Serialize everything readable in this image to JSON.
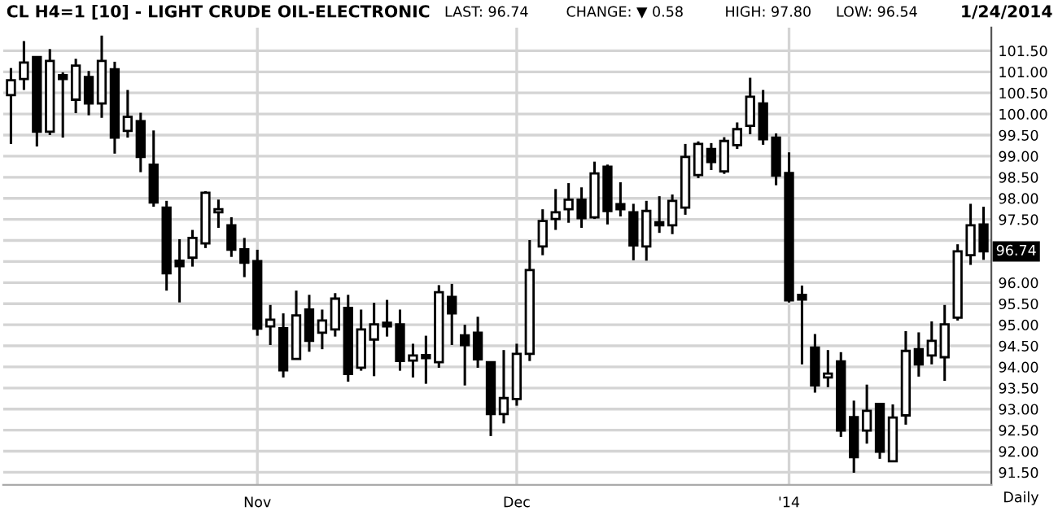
{
  "chart_data": {
    "type": "candlestick",
    "title": "CL H4=1 [10] - LIGHT CRUDE OIL-ELECTRONIC",
    "annotations": [
      "LAST: 96.74",
      "CHANGE: ▼ 0.58",
      "HIGH: 97.80",
      "LOW: 96.54",
      "1/24/2014",
      {
        "text": "96.74",
        "y": 96.74
      },
      "Daily"
    ],
    "categories": [
      null,
      null,
      null,
      null,
      null,
      null,
      null,
      null,
      null,
      null,
      null,
      null,
      null,
      null,
      null,
      null,
      null,
      null,
      null,
      "Nov",
      null,
      null,
      null,
      null,
      null,
      null,
      null,
      null,
      null,
      null,
      null,
      null,
      null,
      null,
      null,
      null,
      null,
      null,
      null,
      "Dec",
      null,
      null,
      null,
      null,
      null,
      null,
      null,
      null,
      null,
      null,
      null,
      null,
      null,
      null,
      null,
      null,
      null,
      null,
      null,
      null,
      "'14",
      null,
      null,
      null,
      null,
      null,
      null,
      null,
      null,
      null,
      null,
      null,
      null,
      null,
      null,
      null
    ],
    "ohlc": [
      [
        100.45,
        101.09,
        99.29,
        100.8
      ],
      [
        100.83,
        101.73,
        100.57,
        101.22
      ],
      [
        101.35,
        101.35,
        99.23,
        99.58
      ],
      [
        99.58,
        101.54,
        99.5,
        101.26
      ],
      [
        100.92,
        100.99,
        99.44,
        100.83
      ],
      [
        100.34,
        101.31,
        100.02,
        101.15
      ],
      [
        100.88,
        101.02,
        99.97,
        100.25
      ],
      [
        100.25,
        101.86,
        99.91,
        101.26
      ],
      [
        101.06,
        101.24,
        99.06,
        99.44
      ],
      [
        99.6,
        100.57,
        99.44,
        99.93
      ],
      [
        99.83,
        100.03,
        98.62,
        98.98
      ],
      [
        98.8,
        99.61,
        97.8,
        97.9
      ],
      [
        97.78,
        97.94,
        95.81,
        96.22
      ],
      [
        96.52,
        97.03,
        95.53,
        96.39
      ],
      [
        96.59,
        97.25,
        96.38,
        97.06
      ],
      [
        96.93,
        98.17,
        96.82,
        98.13
      ],
      [
        97.67,
        97.97,
        97.3,
        97.74
      ],
      [
        97.36,
        97.55,
        96.61,
        96.78
      ],
      [
        96.79,
        97.06,
        96.13,
        96.47
      ],
      [
        96.51,
        96.78,
        94.74,
        94.91
      ],
      [
        94.96,
        95.47,
        94.52,
        95.12
      ],
      [
        94.92,
        95.27,
        93.75,
        93.92
      ],
      [
        94.19,
        95.81,
        94.19,
        95.22
      ],
      [
        95.36,
        95.71,
        94.36,
        94.62
      ],
      [
        94.81,
        95.36,
        94.42,
        95.1
      ],
      [
        94.89,
        95.75,
        94.72,
        95.62
      ],
      [
        95.4,
        95.71,
        93.65,
        93.83
      ],
      [
        93.98,
        95.36,
        93.91,
        94.89
      ],
      [
        94.65,
        95.52,
        93.78,
        95.01
      ],
      [
        95.05,
        95.59,
        94.72,
        94.96
      ],
      [
        95.01,
        95.36,
        93.91,
        94.14
      ],
      [
        94.15,
        94.55,
        93.75,
        94.27
      ],
      [
        94.28,
        94.74,
        93.6,
        94.21
      ],
      [
        94.11,
        95.94,
        93.98,
        95.77
      ],
      [
        95.66,
        95.97,
        94.52,
        95.27
      ],
      [
        94.75,
        95.0,
        93.56,
        94.52
      ],
      [
        94.81,
        95.19,
        93.98,
        94.18
      ],
      [
        94.11,
        94.11,
        92.36,
        92.88
      ],
      [
        92.88,
        94.4,
        92.66,
        93.26
      ],
      [
        93.24,
        94.55,
        93.08,
        94.31
      ],
      [
        94.31,
        97.01,
        94.14,
        96.3
      ],
      [
        96.86,
        97.74,
        96.65,
        97.46
      ],
      [
        97.51,
        98.22,
        97.25,
        97.67
      ],
      [
        97.74,
        98.36,
        97.42,
        97.97
      ],
      [
        97.97,
        98.26,
        97.3,
        97.53
      ],
      [
        97.55,
        98.87,
        97.51,
        98.59
      ],
      [
        98.75,
        98.8,
        97.38,
        97.7
      ],
      [
        97.86,
        98.38,
        97.57,
        97.74
      ],
      [
        97.67,
        97.87,
        96.53,
        96.88
      ],
      [
        96.86,
        97.94,
        96.52,
        97.7
      ],
      [
        97.43,
        98.05,
        97.18,
        97.36
      ],
      [
        97.36,
        98.09,
        97.15,
        97.94
      ],
      [
        97.78,
        99.29,
        97.61,
        98.98
      ],
      [
        98.55,
        99.35,
        98.48,
        99.29
      ],
      [
        99.17,
        99.31,
        98.67,
        98.86
      ],
      [
        98.64,
        99.45,
        98.58,
        99.36
      ],
      [
        99.26,
        99.8,
        99.17,
        99.64
      ],
      [
        99.72,
        100.86,
        99.52,
        100.41
      ],
      [
        100.25,
        100.57,
        99.27,
        99.4
      ],
      [
        99.44,
        99.54,
        98.31,
        98.54
      ],
      [
        98.6,
        99.09,
        95.53,
        95.58
      ],
      [
        95.71,
        95.93,
        94.06,
        95.6
      ],
      [
        94.46,
        94.78,
        93.39,
        93.56
      ],
      [
        93.75,
        94.4,
        93.52,
        93.84
      ],
      [
        94.13,
        94.35,
        92.34,
        92.49
      ],
      [
        92.81,
        93.2,
        91.49,
        91.86
      ],
      [
        92.49,
        93.58,
        92.18,
        92.96
      ],
      [
        93.12,
        93.12,
        91.82,
        91.99
      ],
      [
        91.76,
        93.11,
        91.76,
        92.8
      ],
      [
        92.85,
        94.85,
        92.63,
        94.38
      ],
      [
        94.42,
        94.82,
        93.77,
        94.06
      ],
      [
        94.27,
        95.08,
        94.06,
        94.62
      ],
      [
        94.23,
        95.47,
        93.67,
        95.01
      ],
      [
        95.17,
        96.91,
        95.1,
        96.74
      ],
      [
        96.65,
        97.87,
        96.42,
        97.36
      ],
      [
        97.38,
        97.8,
        96.54,
        96.74
      ]
    ],
    "ylim": [
      91.2,
      102.05
    ],
    "yticks": [
      {
        "value": 91.5,
        "label": "91.50"
      },
      {
        "value": 92,
        "label": "92.00"
      },
      {
        "value": 92.5,
        "label": "92.50"
      },
      {
        "value": 93,
        "label": "93.00"
      },
      {
        "value": 93.5,
        "label": "93.50"
      },
      {
        "value": 94,
        "label": "94.00"
      },
      {
        "value": 94.5,
        "label": "94.50"
      },
      {
        "value": 95,
        "label": "95.00"
      },
      {
        "value": 95.5,
        "label": "95.50"
      },
      {
        "value": 96,
        "label": "96.00"
      },
      {
        "value": 96.5,
        "label": null
      },
      {
        "value": 97,
        "label": null
      },
      {
        "value": 97.5,
        "label": "97.50"
      },
      {
        "value": 98,
        "label": "98.00"
      },
      {
        "value": 98.5,
        "label": "98.50"
      },
      {
        "value": 99,
        "label": "99.00"
      },
      {
        "value": 99.5,
        "label": "99.50"
      },
      {
        "value": 100,
        "label": "100.00"
      },
      {
        "value": 100.5,
        "label": "100.50"
      },
      {
        "value": 101,
        "label": "101.00"
      },
      {
        "value": 101.5,
        "label": "101.50"
      }
    ],
    "grid": true
  }
}
